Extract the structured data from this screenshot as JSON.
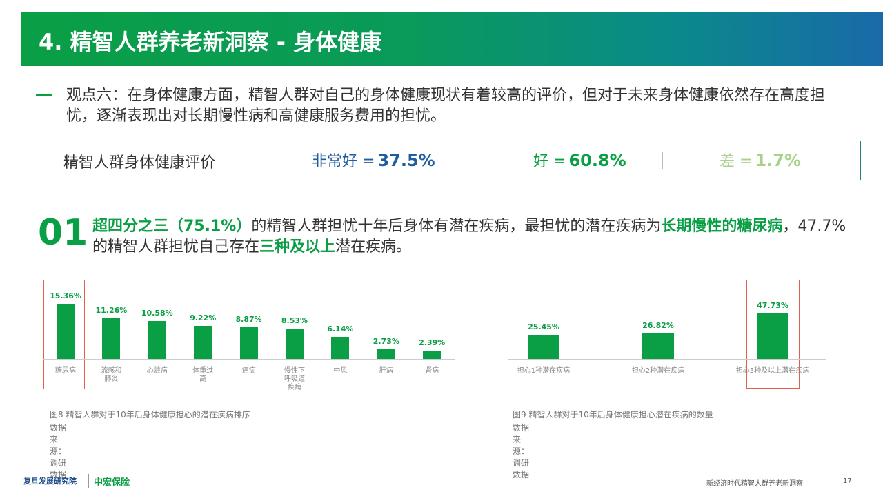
{
  "header": {
    "title": "4. 精智人群养老新洞察 - 身体健康"
  },
  "viewpoint": "观点六：在身体健康方面，精智人群对自己的身体健康现状有着较高的评价，但对于未来身体健康依然存在高度担忧，逐渐表现出对长期慢性病和高健康服务费用的担忧。",
  "rating": {
    "title": "精智人群身体健康评价",
    "items": [
      {
        "label": "非常好 =",
        "value": "37.5%",
        "color": "#1f5d9c"
      },
      {
        "label": "好 =",
        "value": "60.8%",
        "color": "#0a9e45"
      },
      {
        "label": "差 =",
        "value": "1.7%",
        "color": "#a9d18e"
      }
    ]
  },
  "finding": {
    "number": "01",
    "segments": [
      {
        "text": "超四分之三（75.1%）",
        "highlight": true
      },
      {
        "text": "的精智人群担忧十年后身体有潜在疾病，最担忧的潜在疾病为",
        "highlight": false
      },
      {
        "text": "长期慢性的糖尿病",
        "highlight": true
      },
      {
        "text": "，47.7%的精智人群担忧自己存在",
        "highlight": false
      },
      {
        "text": "三种及以上",
        "highlight": true
      },
      {
        "text": "潜在疾病。",
        "highlight": false
      }
    ]
  },
  "chart_data": [
    {
      "type": "bar",
      "title": "图8 精智人群对于10年后身体健康担心的潜在疾病排序",
      "source": "数据来源：调研数据",
      "color": "#0a9e45",
      "categories": [
        "糖尿病",
        "流感和肺炎",
        "心脏病",
        "体重过高",
        "癌症",
        "慢性下呼吸道疾病",
        "中风",
        "肝病",
        "肾病"
      ],
      "values": [
        15.36,
        11.26,
        10.58,
        9.22,
        8.87,
        8.53,
        6.14,
        2.73,
        2.39
      ],
      "value_labels": [
        "15.36%",
        "11.26%",
        "10.58%",
        "9.22%",
        "8.87%",
        "8.53%",
        "6.14%",
        "2.73%",
        "2.39%"
      ]
    },
    {
      "type": "bar",
      "title": "图9 精智人群对于10年后身体健康担心潜在疾病的数量",
      "source": "数据来源：调研数据",
      "color": "#0a9e45",
      "categories": [
        "担心1种潜在疾病",
        "担心2种潜在疾病",
        "担心3种及以上潜在疾病"
      ],
      "values": [
        25.45,
        26.82,
        47.73
      ],
      "value_labels": [
        "25.45%",
        "26.82%",
        "47.73%"
      ]
    }
  ],
  "footer": {
    "logo1": "复旦发展研究院",
    "logo2": "中宏保险",
    "text": "新经济时代精智人群养老新洞察",
    "page": "17"
  }
}
